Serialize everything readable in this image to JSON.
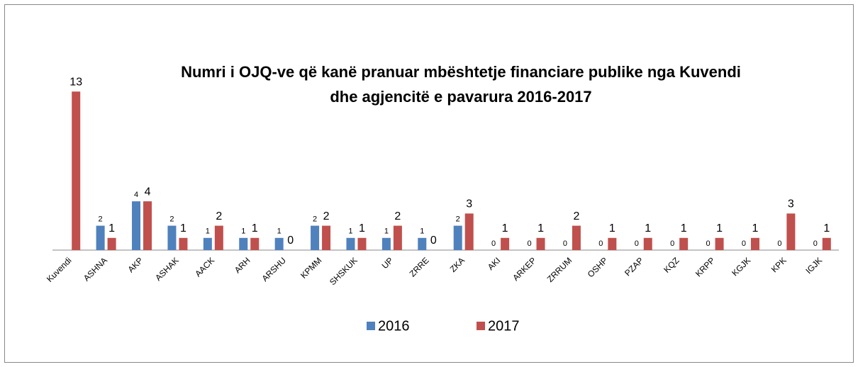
{
  "chart_data": {
    "type": "bar",
    "title": "Numri i OJQ-ve që kanë pranuar mbështetje financiare publike nga Kuvendi dhe agjencitë e pavarura 2016-2017",
    "title_lines": [
      "Numri i OJQ-ve që kanë pranuar mbështetje financiare publike nga Kuvendi",
      "dhe agjencitë e pavarura 2016-2017"
    ],
    "categories": [
      "Kuvendi",
      "ASHNA",
      "AKP",
      "ASHAK",
      "AACK",
      "ARH",
      "ARSHU",
      "KPMM",
      "SHSKUK",
      "UP",
      "ZRRE",
      "ZKA",
      "AKI",
      "ARKEP",
      "ZRRUM",
      "OSHP",
      "PZAP",
      "KQZ",
      "KRPP",
      "KGJK",
      "KPK",
      "IGJK"
    ],
    "series": [
      {
        "name": "2016",
        "color": "#4f81bd",
        "values": [
          null,
          2,
          4,
          2,
          1,
          1,
          1,
          2,
          1,
          1,
          1,
          2,
          0,
          0,
          0,
          0,
          0,
          0,
          0,
          0,
          0,
          0
        ]
      },
      {
        "name": "2017",
        "color": "#c0504d",
        "values": [
          13,
          1,
          4,
          1,
          2,
          1,
          0,
          2,
          1,
          2,
          0,
          3,
          1,
          1,
          2,
          1,
          1,
          1,
          1,
          1,
          3,
          1
        ]
      }
    ],
    "ylim": [
      0,
      14
    ],
    "legend": "bottom"
  }
}
